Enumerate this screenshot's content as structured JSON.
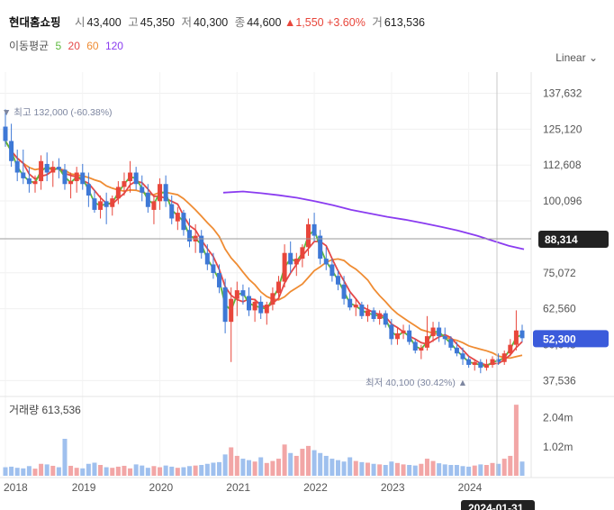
{
  "header": {
    "name": "현대홈쇼핑",
    "open_label": "시",
    "open": "43,400",
    "high_label": "고",
    "high": "45,350",
    "low_label": "저",
    "low": "40,300",
    "close_label": "종",
    "close": "44,600",
    "change": "1,550",
    "change_pct": "+3.60%",
    "volume_label": "거",
    "volume": "613,536"
  },
  "ma_legend": {
    "label": "이동평균",
    "periods": [
      "5",
      "20",
      "60",
      "120"
    ]
  },
  "scale_selector": {
    "label": "Linear"
  },
  "colors": {
    "up": "#e8463b",
    "down": "#3e78d6",
    "ma5": "#5cb83c",
    "ma20": "#e54848",
    "ma60": "#ef8c33",
    "ma120": "#8a3cf0",
    "vol_up": "#f2a6a6",
    "vol_down": "#9fc0ee",
    "current_badge": "#3b5bdb",
    "crosshair_badge": "#222222"
  },
  "chart_data": {
    "type": "candlestick",
    "x_axis_labels": [
      "2018",
      "2019",
      "2020",
      "2021",
      "2022",
      "2023",
      "2024"
    ],
    "y_ticks": [
      "137,632",
      "125,120",
      "112,608",
      "100,096",
      "75,072",
      "62,560",
      "37,536"
    ],
    "y_range": [
      32000,
      145000
    ],
    "annotations": {
      "high": "▼ 최고 132,000 (-60.38%)",
      "low": "최저 40,100 (30.42%) ▲",
      "current_price": "52,300",
      "crosshair_price": "88,314",
      "crosshair_date": "2024-01-31",
      "hidden_tick": "50,048"
    },
    "volume": {
      "label": "거래량",
      "value": "613,536",
      "ticks": [
        "2.04m",
        "1.02m"
      ],
      "max": 2600000
    },
    "candles": [
      [
        126000,
        132000,
        119000,
        121000
      ],
      [
        121000,
        127000,
        112000,
        114000
      ],
      [
        114000,
        118000,
        107000,
        110000
      ],
      [
        110000,
        118000,
        106000,
        108000
      ],
      [
        108000,
        112000,
        103000,
        106000
      ],
      [
        106000,
        109000,
        103000,
        107000
      ],
      [
        107000,
        116000,
        104000,
        114000
      ],
      [
        113000,
        117000,
        107000,
        110000
      ],
      [
        110000,
        114000,
        105000,
        112000
      ],
      [
        112000,
        115000,
        108000,
        111000
      ],
      [
        111000,
        113000,
        104000,
        106000
      ],
      [
        106000,
        110000,
        101000,
        107000
      ],
      [
        107000,
        112000,
        103000,
        110000
      ],
      [
        110000,
        113000,
        104000,
        106000
      ],
      [
        106000,
        110000,
        98000,
        102000
      ],
      [
        101000,
        104000,
        96000,
        97000
      ],
      [
        97000,
        102000,
        94000,
        100000
      ],
      [
        100000,
        103000,
        92000,
        98000
      ],
      [
        98000,
        102000,
        95000,
        101000
      ],
      [
        101000,
        107000,
        99000,
        105000
      ],
      [
        105000,
        110000,
        102000,
        107000
      ],
      [
        107000,
        114000,
        103000,
        110000
      ],
      [
        110000,
        112000,
        104000,
        106000
      ],
      [
        105000,
        109000,
        100000,
        103000
      ],
      [
        103000,
        106000,
        96000,
        98000
      ],
      [
        97000,
        102000,
        92000,
        100000
      ],
      [
        100000,
        108000,
        97000,
        106000
      ],
      [
        106000,
        109000,
        98000,
        100000
      ],
      [
        99000,
        102000,
        92000,
        94000
      ],
      [
        93000,
        98000,
        90000,
        96000
      ],
      [
        96000,
        97000,
        88000,
        90000
      ],
      [
        90000,
        94000,
        84000,
        86000
      ],
      [
        86000,
        92000,
        82000,
        88000
      ],
      [
        88000,
        90000,
        80000,
        82000
      ],
      [
        82000,
        85000,
        76000,
        78000
      ],
      [
        78000,
        82000,
        73000,
        75000
      ],
      [
        75000,
        78000,
        68000,
        70000
      ],
      [
        70000,
        73000,
        54000,
        58000
      ],
      [
        58000,
        70000,
        44000,
        66000
      ],
      [
        66000,
        72000,
        60000,
        69000
      ],
      [
        69000,
        71000,
        64000,
        67000
      ],
      [
        67000,
        70000,
        60000,
        62000
      ],
      [
        62000,
        66000,
        58000,
        65000
      ],
      [
        65000,
        67000,
        59000,
        61000
      ],
      [
        61000,
        65000,
        57000,
        64000
      ],
      [
        64000,
        70000,
        62000,
        68000
      ],
      [
        68000,
        74000,
        66000,
        72000
      ],
      [
        72000,
        85000,
        70000,
        82000
      ],
      [
        82000,
        86000,
        75000,
        78000
      ],
      [
        78000,
        82000,
        74000,
        80000
      ],
      [
        80000,
        85000,
        77000,
        84000
      ],
      [
        84000,
        94000,
        81000,
        92000
      ],
      [
        92000,
        96000,
        86000,
        88000
      ],
      [
        88000,
        90000,
        78000,
        80000
      ],
      [
        80000,
        84000,
        76000,
        78000
      ],
      [
        78000,
        80000,
        72000,
        74000
      ],
      [
        74000,
        76000,
        69000,
        71000
      ],
      [
        71000,
        74000,
        64000,
        66000
      ],
      [
        66000,
        68000,
        62000,
        63000
      ],
      [
        63000,
        66000,
        60000,
        64000
      ],
      [
        64000,
        65000,
        59000,
        60000
      ],
      [
        60000,
        64000,
        58000,
        62000
      ],
      [
        62000,
        63000,
        58000,
        59000
      ],
      [
        59000,
        62000,
        57000,
        61000
      ],
      [
        61000,
        62000,
        56000,
        57000
      ],
      [
        57000,
        59000,
        50000,
        52000
      ],
      [
        52000,
        56000,
        50000,
        54000
      ],
      [
        54000,
        57000,
        52000,
        55000
      ],
      [
        55000,
        57000,
        50000,
        51000
      ],
      [
        51000,
        52000,
        47000,
        48000
      ],
      [
        48000,
        50000,
        45000,
        49000
      ],
      [
        49000,
        60000,
        48000,
        53000
      ],
      [
        53000,
        58000,
        51000,
        56000
      ],
      [
        56000,
        58000,
        51000,
        53000
      ],
      [
        53000,
        56000,
        50000,
        52000
      ],
      [
        52000,
        53000,
        48000,
        49000
      ],
      [
        49000,
        51000,
        46000,
        47000
      ],
      [
        47000,
        49000,
        43000,
        45000
      ],
      [
        45000,
        46000,
        42000,
        43000
      ],
      [
        43000,
        45000,
        41000,
        44000
      ],
      [
        44000,
        45000,
        40100,
        42000
      ],
      [
        42000,
        45000,
        41000,
        43000
      ],
      [
        43000,
        46000,
        42000,
        45000
      ],
      [
        45000,
        47000,
        43000,
        44000
      ],
      [
        44000,
        48000,
        43000,
        47000
      ],
      [
        47000,
        52000,
        46000,
        50000
      ],
      [
        50000,
        62000,
        48000,
        55000
      ],
      [
        55000,
        57000,
        51000,
        52300
      ]
    ],
    "volumes": [
      300000,
      320000,
      280000,
      260000,
      340000,
      250000,
      420000,
      400000,
      350000,
      300000,
      1300000,
      350000,
      280000,
      260000,
      420000,
      460000,
      380000,
      300000,
      280000,
      320000,
      350000,
      260000,
      400000,
      360000,
      280000,
      340000,
      300000,
      360000,
      320000,
      280000,
      300000,
      340000,
      360000,
      380000,
      420000,
      460000,
      480000,
      750000,
      1000000,
      700000,
      600000,
      550000,
      500000,
      650000,
      450000,
      520000,
      600000,
      1100000,
      800000,
      700000,
      950000,
      1050000,
      900000,
      800000,
      700000,
      600000,
      550000,
      500000,
      650000,
      520000,
      480000,
      460000,
      420000,
      400000,
      380000,
      500000,
      450000,
      400000,
      380000,
      360000,
      420000,
      600000,
      520000,
      440000,
      400000,
      380000,
      380000,
      340000,
      320000,
      360000,
      400000,
      380000,
      450000,
      420000,
      600000,
      700000,
      2500000,
      500000
    ],
    "ma120": [
      [
        248,
        103000
      ],
      [
        270,
        103400
      ],
      [
        290,
        102800
      ],
      [
        310,
        102100
      ],
      [
        330,
        101200
      ],
      [
        350,
        100000
      ],
      [
        370,
        98600
      ],
      [
        390,
        97000
      ],
      [
        410,
        95800
      ],
      [
        430,
        94600
      ],
      [
        450,
        93600
      ],
      [
        470,
        92400
      ],
      [
        490,
        91100
      ],
      [
        510,
        89700
      ],
      [
        530,
        88000
      ],
      [
        550,
        86000
      ],
      [
        565,
        84500
      ],
      [
        582,
        83300
      ]
    ]
  }
}
